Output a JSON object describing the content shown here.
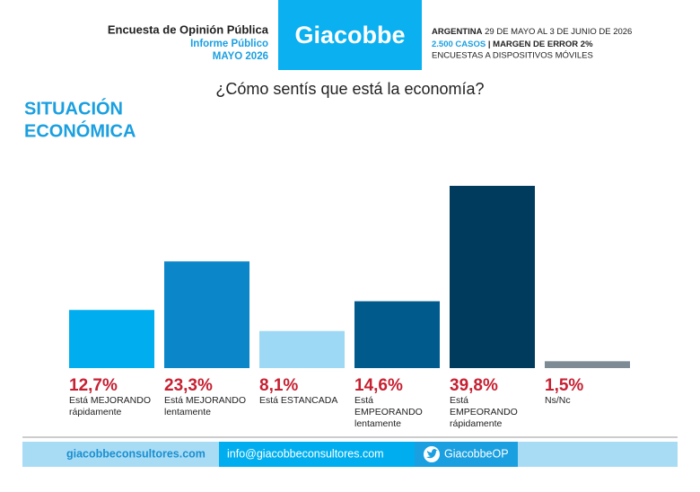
{
  "header": {
    "left": [
      "Encuesta de Opinión Pública",
      "Informe Público",
      "MAYO 2026"
    ],
    "logo": "Giacobbe",
    "right": {
      "country": "ARGENTINA",
      "dates": "29 DE MAYO AL 3 DE JUNIO DE 2026",
      "cases": "2.500 CASOS",
      "separator": "|",
      "margin": "MARGEN DE ERROR 2%",
      "method": "ENCUESTAS A DISPOSITIVOS MÓVILES"
    }
  },
  "section_title": [
    "SITUACIÓN",
    "ECONÓMICA"
  ],
  "chart_data": {
    "type": "bar",
    "title": "¿Cómo sentís que está la economía?",
    "categories": [
      [
        "Está MEJORANDO",
        "rápidamente"
      ],
      [
        "Está MEJORANDO",
        "lentamente"
      ],
      [
        "Está ESTANCADA"
      ],
      [
        "Está",
        "EMPEORANDO",
        "lentamente"
      ],
      [
        "Está",
        "EMPEORANDO",
        "rápidamente"
      ],
      [
        "Ns/Nc"
      ]
    ],
    "values": [
      12.7,
      23.3,
      8.1,
      14.6,
      39.8,
      1.5
    ],
    "value_labels": [
      "12,7%",
      "23,3%",
      "8,1%",
      "14,6%",
      "39,8%",
      "1,5%"
    ],
    "colors": [
      "#00aeef",
      "#0b87c9",
      "#9dd9f5",
      "#005a8c",
      "#003a5c",
      "#7e8b94"
    ],
    "value_label_color": "#c62032"
  },
  "footer": {
    "website": "giacobbeconsultores.com",
    "email": "info@giacobbeconsultores.com",
    "twitter": "GiacobbeOP"
  }
}
